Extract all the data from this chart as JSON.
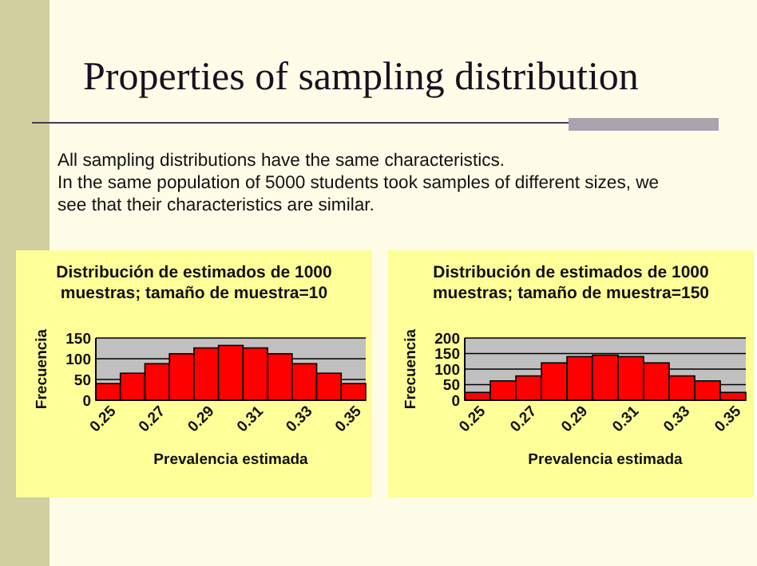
{
  "chart_data": [
    {
      "type": "other",
      "title": "Properties of sampling distribution",
      "annotations": [
        "All sampling distributions have the same characteristics.",
        "In the same population of 5000 students took samples of different sizes, we see that their characteristics are similar."
      ]
    },
    {
      "type": "bar",
      "title": "Distribución de estimados de 1000 muestras; tamaño de muestra=10",
      "xlabel": "Prevalencia estimada",
      "ylabel": "Frecuencia",
      "categories": [
        "0.25",
        null,
        "0.27",
        null,
        "0.29",
        null,
        "0.31",
        null,
        "0.33",
        null,
        "0.35"
      ],
      "values": [
        40,
        65,
        88,
        112,
        126,
        132,
        126,
        112,
        88,
        65,
        40
      ],
      "color": "#ff0000",
      "ylim": [
        0,
        150
      ],
      "yticks": [
        0,
        50,
        100,
        150
      ],
      "grid": "y"
    },
    {
      "type": "bar",
      "title": "Distribución de estimados de 1000 muestras; tamaño de muestra=150",
      "xlabel": "Prevalencia estimada",
      "ylabel": "Frecuencia",
      "categories": [
        "0.25",
        null,
        "0.27",
        null,
        "0.29",
        null,
        "0.31",
        null,
        "0.33",
        null,
        "0.35"
      ],
      "values": [
        25,
        62,
        78,
        120,
        140,
        145,
        140,
        120,
        78,
        62,
        25
      ],
      "color": "#ff0000",
      "ylim": [
        0,
        200
      ],
      "yticks": [
        0,
        50,
        100,
        150,
        200
      ],
      "grid": "y"
    }
  ]
}
